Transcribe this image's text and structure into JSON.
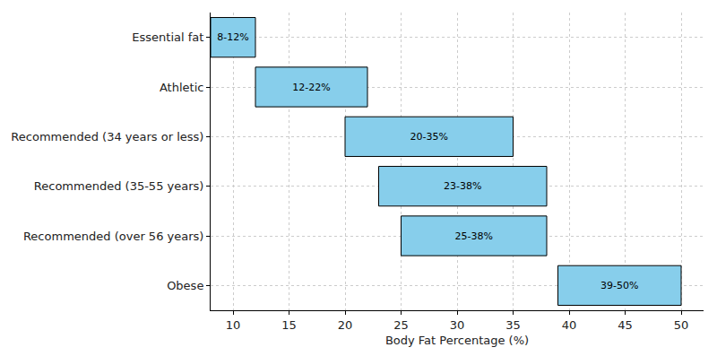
{
  "chart_data": {
    "type": "bar",
    "orientation": "horizontal",
    "xlabel": "Body Fat Percentage (%)",
    "categories": [
      "Essential fat",
      "Athletic",
      "Recommended (34 years or less)",
      "Recommended (35-55 years)",
      "Recommended (over 56 years)",
      "Obese"
    ],
    "values": [
      [
        8,
        12
      ],
      [
        12,
        22
      ],
      [
        20,
        35
      ],
      [
        23,
        38
      ],
      [
        25,
        38
      ],
      [
        39,
        50
      ]
    ],
    "value_labels": [
      "8-12%",
      "12-22%",
      "20-35%",
      "23-38%",
      "25-38%",
      "39-50%"
    ],
    "data_labels": true,
    "color": "#87ceeb",
    "xlim": [
      8,
      52
    ],
    "xticks": [
      10,
      15,
      20,
      25,
      30,
      35,
      40,
      45,
      50
    ],
    "grid": true
  }
}
